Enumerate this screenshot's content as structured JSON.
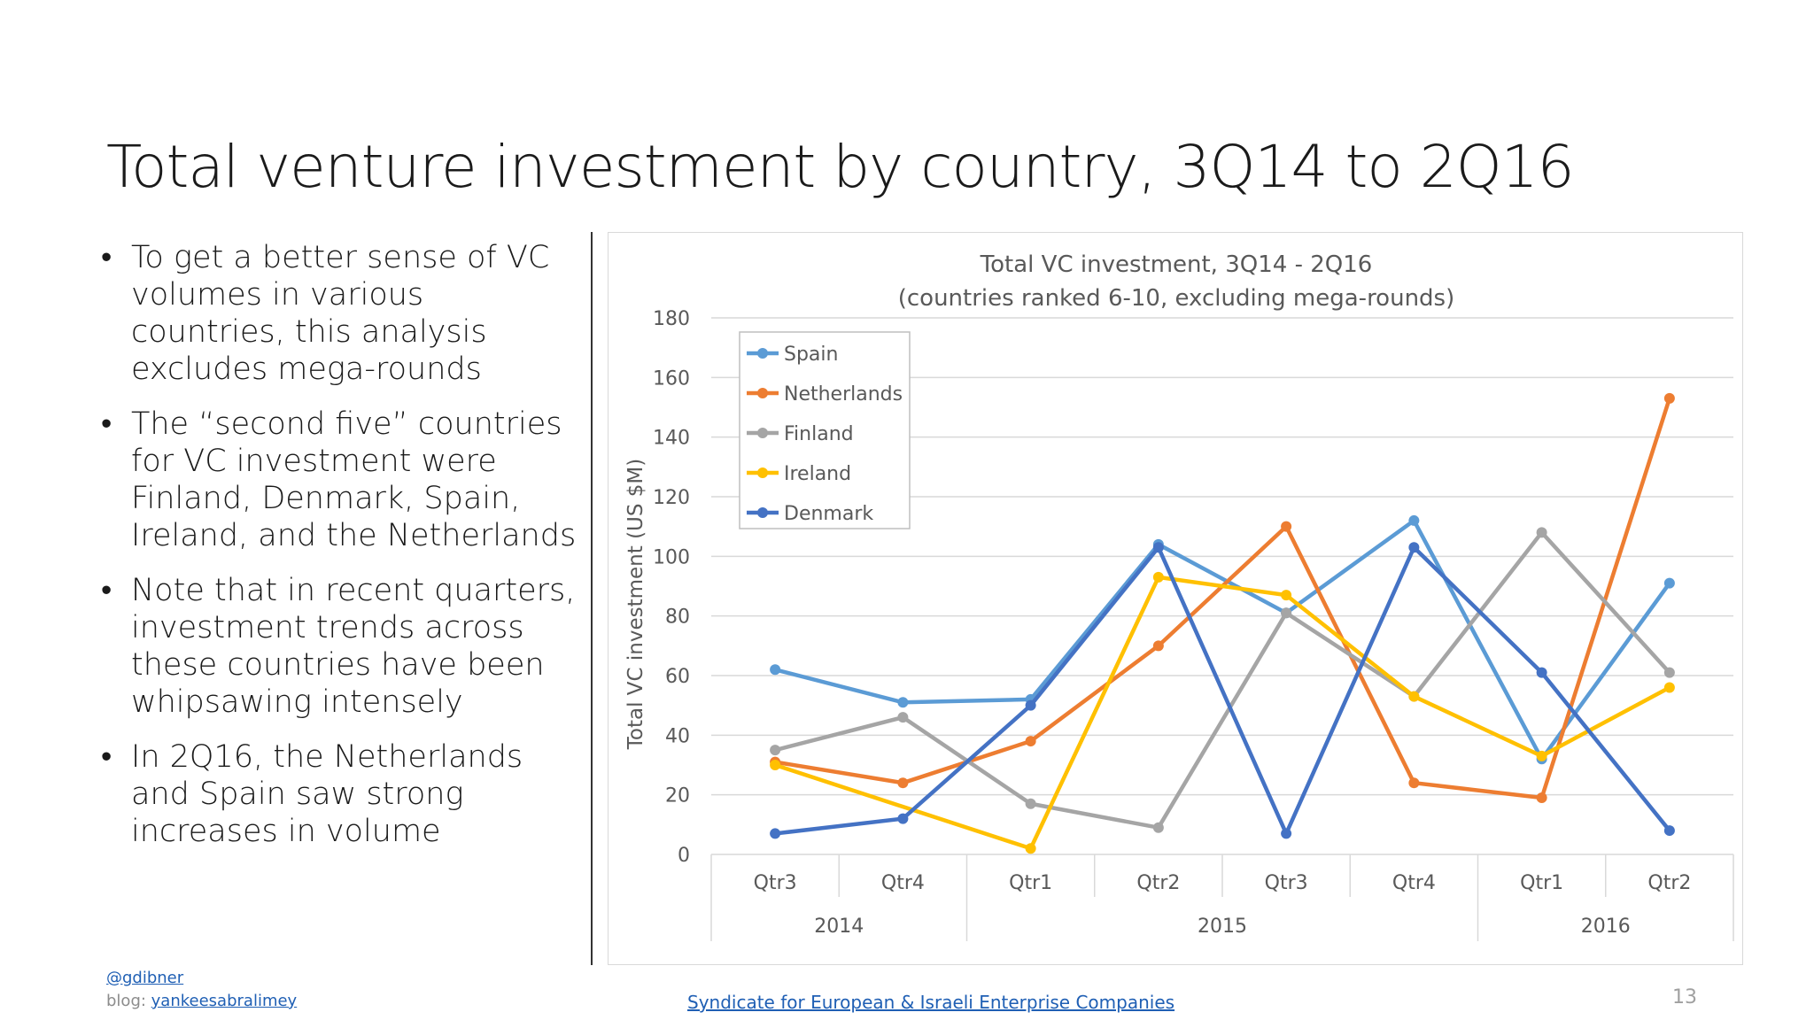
{
  "slide": {
    "title": "Total venture investment by country, 3Q14 to 2Q16",
    "bullets": [
      "To get a better sense of VC volumes in various countries, this analysis excludes mega-rounds",
      "The “second five” countries for VC investment were Finland, Denmark, Spain, Ireland, and the Netherlands",
      "Note that in recent quarters, investment trends across these countries have been whipsawing intensely",
      "In 2Q16, the Netherlands and Spain saw strong increases in volume"
    ],
    "page_number": "13"
  },
  "footer": {
    "handle": "@gdibner",
    "blog_label": "blog: ",
    "blog_link": "yankeesabralimey",
    "organization": "Syndicate for European & Israeli Enterprise Companies"
  },
  "chart_data": {
    "type": "line",
    "title": "Total VC investment, 3Q14 - 2Q16",
    "subtitle": "(countries ranked 6-10, excluding mega-rounds)",
    "ylabel": "Total VC investment (US $M)",
    "xlabel": "",
    "ylim": [
      0,
      180
    ],
    "yticks": [
      0,
      20,
      40,
      60,
      80,
      100,
      120,
      140,
      160,
      180
    ],
    "grid": true,
    "legend_position": "top-left",
    "categories": [
      "Qtr3",
      "Qtr4",
      "Qtr1",
      "Qtr2",
      "Qtr3",
      "Qtr4",
      "Qtr1",
      "Qtr2"
    ],
    "year_groups": [
      {
        "label": "2014",
        "count": 2
      },
      {
        "label": "2015",
        "count": 4
      },
      {
        "label": "2016",
        "count": 2
      }
    ],
    "series": [
      {
        "name": "Spain",
        "color": "#5b9bd5",
        "values": [
          62,
          51,
          52,
          104,
          81,
          112,
          32,
          91
        ]
      },
      {
        "name": "Netherlands",
        "color": "#ed7d31",
        "values": [
          31,
          24,
          38,
          70,
          110,
          24,
          19,
          153
        ]
      },
      {
        "name": "Finland",
        "color": "#a5a5a5",
        "values": [
          35,
          46,
          17,
          9,
          81,
          53,
          108,
          61
        ]
      },
      {
        "name": "Ireland",
        "color": "#ffc000",
        "values": [
          30,
          null,
          2,
          93,
          87,
          53,
          33,
          56
        ]
      },
      {
        "name": "Denmark",
        "color": "#4472c4",
        "values": [
          7,
          12,
          50,
          103,
          7,
          103,
          61,
          8
        ]
      }
    ]
  }
}
